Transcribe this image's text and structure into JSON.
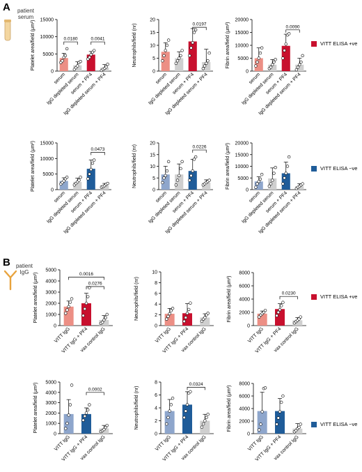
{
  "panels": {
    "A": {
      "letter": "A",
      "source_label": "patient serum",
      "legend_pos": "VITT ELISA +ve",
      "legend_neg": "VITT ELISA −ve"
    },
    "B": {
      "letter": "B",
      "source_label": "patient IgG",
      "legend_pos": "VITT ELISA +ve",
      "legend_neg": "VITT ELISA −ve"
    }
  },
  "colors": {
    "pos_dark": "#c8102e",
    "pos_light": "#ec8f85",
    "neg_dark": "#1f5c99",
    "neg_light": "#8ea6cc",
    "grey": "#cfcfcf",
    "serum_tube": "#f3d6a0",
    "igg_icon": "#e8a33d"
  },
  "chart_data": [
    {
      "id": "A-pos-platelet",
      "type": "bar",
      "ylabel": "Platelet area/field (μm²)",
      "ylim": [
        0,
        15000
      ],
      "yticks": [
        0,
        5000,
        10000,
        15000
      ],
      "categories": [
        "serum",
        "IgG depleted serum",
        "serum + PF4",
        "IgG depleted serum + PF4"
      ],
      "values": [
        3800,
        1700,
        4800,
        1000
      ],
      "errors": [
        1400,
        1000,
        900,
        900
      ],
      "points": [
        [
          2500,
          3000,
          4000,
          4500,
          6500
        ],
        [
          500,
          1000,
          1500,
          2500,
          2800
        ],
        [
          3500,
          4000,
          4800,
          5500,
          6000
        ],
        [
          200,
          500,
          800,
          1200,
          2000
        ]
      ],
      "colors": [
        "pos_light",
        "grey",
        "pos_dark",
        "grey"
      ],
      "brackets": [
        {
          "from": 0,
          "to": 1,
          "label": "0.0180",
          "y": 8500
        },
        {
          "from": 2,
          "to": 3,
          "label": "0.0041",
          "y": 8500
        }
      ]
    },
    {
      "id": "A-pos-neutrophil",
      "type": "bar",
      "ylabel": "Neutrophils/field (nr)",
      "ylim": [
        0,
        20
      ],
      "yticks": [
        0,
        5,
        10,
        15,
        20
      ],
      "categories": [
        "serum",
        "IgG depleted serum",
        "serum + PF4",
        "IgG depleted serum + PF4"
      ],
      "values": [
        7.5,
        5,
        11.5,
        3.5
      ],
      "errors": [
        3.5,
        2.5,
        5,
        5
      ],
      "points": [
        [
          4,
          6,
          8,
          10,
          12
        ],
        [
          3,
          4,
          5,
          6,
          8
        ],
        [
          6,
          9,
          11,
          15,
          16
        ],
        [
          1,
          2,
          3,
          4,
          7
        ]
      ],
      "colors": [
        "pos_light",
        "grey",
        "pos_dark",
        "grey"
      ],
      "brackets": [
        {
          "from": 2,
          "to": 3,
          "label": "0.0197",
          "y": 17
        }
      ]
    },
    {
      "id": "A-pos-fibrin",
      "type": "bar",
      "ylabel": "Fibrin area/field (μm²)",
      "ylim": [
        0,
        20000
      ],
      "yticks": [
        0,
        5000,
        10000,
        15000,
        20000
      ],
      "categories": [
        "serum",
        "IgG depleted serum",
        "serum + PF4",
        "IgG depleted serum + PF4"
      ],
      "values": [
        5000,
        2500,
        9800,
        2500
      ],
      "errors": [
        4000,
        2000,
        4500,
        2500
      ],
      "points": [
        [
          2000,
          3500,
          5000,
          7000,
          9000
        ],
        [
          1000,
          1500,
          2500,
          3500,
          4500
        ],
        [
          5000,
          8000,
          10500,
          14000,
          14500
        ],
        [
          500,
          1500,
          2500,
          3500,
          6000
        ]
      ],
      "colors": [
        "pos_light",
        "grey",
        "pos_dark",
        "grey"
      ],
      "brackets": [
        {
          "from": 2,
          "to": 3,
          "label": "0.0090",
          "y": 16000
        }
      ]
    },
    {
      "id": "A-neg-platelet",
      "type": "bar",
      "ylabel": "Platelet area/field (μm²)",
      "ylim": [
        0,
        15000
      ],
      "yticks": [
        0,
        5000,
        10000,
        15000
      ],
      "categories": [
        "serum",
        "IgG depleted serum",
        "serum + PF4",
        "IgG depleted serum + PF4"
      ],
      "values": [
        2800,
        2500,
        6700,
        1400
      ],
      "errors": [
        1000,
        1200,
        2800,
        600
      ],
      "points": [
        [
          1800,
          2300,
          2800,
          3500,
          4000
        ],
        [
          1500,
          2000,
          2500,
          3000,
          4000
        ],
        [
          3500,
          5000,
          6500,
          8500,
          9500
        ],
        [
          800,
          1000,
          1300,
          1700,
          2000
        ]
      ],
      "colors": [
        "neg_light",
        "grey",
        "neg_dark",
        "grey"
      ],
      "brackets": [
        {
          "from": 2,
          "to": 3,
          "label": "0.0473",
          "y": 12000
        }
      ]
    },
    {
      "id": "A-neg-neutrophil",
      "type": "bar",
      "ylabel": "Neutrophils/field (nr)",
      "ylim": [
        0,
        20
      ],
      "yticks": [
        0,
        5,
        10,
        15,
        20
      ],
      "categories": [
        "serum",
        "IgG depleted serum",
        "serum + PF4",
        "IgG depleted serum + PF4"
      ],
      "values": [
        6.5,
        6.5,
        8,
        3
      ],
      "errors": [
        3.5,
        4.5,
        5,
        1.2
      ],
      "points": [
        [
          3,
          5,
          6,
          8,
          12
        ],
        [
          2,
          4,
          6,
          9,
          12
        ],
        [
          4,
          6,
          8,
          13,
          14
        ],
        [
          2,
          2.5,
          3,
          3.5,
          4
        ]
      ],
      "colors": [
        "neg_light",
        "grey",
        "neg_dark",
        "grey"
      ],
      "brackets": [
        {
          "from": 2,
          "to": 3,
          "label": "0.0226",
          "y": 17
        }
      ]
    },
    {
      "id": "A-neg-fibrin",
      "type": "bar",
      "ylabel": "Fibrin area/field (μm²)",
      "ylim": [
        0,
        20000
      ],
      "yticks": [
        0,
        5000,
        10000,
        15000,
        20000
      ],
      "categories": [
        "serum",
        "IgG depleted serum",
        "serum + PF4",
        "IgG depleted serum + PF4"
      ],
      "values": [
        3500,
        4800,
        7000,
        1500
      ],
      "errors": [
        2000,
        4500,
        4800,
        1000
      ],
      "points": [
        [
          1000,
          2500,
          3500,
          4500,
          6500
        ],
        [
          1500,
          2500,
          4000,
          7000,
          9500
        ],
        [
          2500,
          5000,
          7000,
          10000,
          14000
        ],
        [
          500,
          1000,
          1500,
          2000,
          2500
        ]
      ],
      "colors": [
        "neg_light",
        "grey",
        "neg_dark",
        "grey"
      ],
      "brackets": []
    },
    {
      "id": "B-pos-platelet",
      "type": "bar",
      "ylabel": "Platelet area/field (μm²)",
      "ylim": [
        0,
        5000
      ],
      "yticks": [
        0,
        1000,
        2000,
        3000,
        4000,
        5000
      ],
      "categories": [
        "VITT IgG",
        "VITT IgG + PF4",
        "vax control IgG"
      ],
      "values": [
        1700,
        2000,
        500
      ],
      "errors": [
        500,
        900,
        400
      ],
      "points": [
        [
          1100,
          1400,
          1700,
          2100,
          2400
        ],
        [
          900,
          1500,
          2000,
          2600,
          3400
        ],
        [
          200,
          300,
          500,
          700,
          1000
        ]
      ],
      "colors": [
        "pos_light",
        "pos_dark",
        "grey"
      ],
      "brackets": [
        {
          "from": 0,
          "to": 2,
          "label": "0.0016",
          "y": 4350
        },
        {
          "from": 1,
          "to": 2,
          "label": "0.0276",
          "y": 3500
        }
      ]
    },
    {
      "id": "B-pos-neutrophil",
      "type": "bar",
      "ylabel": "Neutrophils/field (nr)",
      "ylim": [
        0,
        10
      ],
      "yticks": [
        0,
        2,
        4,
        6,
        8,
        10
      ],
      "categories": [
        "VITT IgG",
        "VITT IgG + PF4",
        "vax control IgG"
      ],
      "values": [
        2.2,
        2.3,
        1.5
      ],
      "errors": [
        1,
        1.8,
        0.7
      ],
      "points": [
        [
          1.2,
          1.7,
          2.2,
          2.8,
          3.2
        ],
        [
          0.8,
          1.5,
          2.3,
          3,
          4.2
        ],
        [
          0.8,
          1.2,
          1.5,
          2,
          2.3
        ]
      ],
      "colors": [
        "pos_light",
        "pos_dark",
        "grey"
      ],
      "brackets": []
    },
    {
      "id": "B-pos-fibrin",
      "type": "bar",
      "ylabel": "Fibrin area/field (μm²)",
      "ylim": [
        0,
        8000
      ],
      "yticks": [
        0,
        2000,
        4000,
        6000,
        8000
      ],
      "categories": [
        "VITT IgG",
        "VITT IgG + PF4",
        "vax control IgG"
      ],
      "values": [
        1800,
        2500,
        800
      ],
      "errors": [
        400,
        800,
        400
      ],
      "points": [
        [
          1300,
          1600,
          1800,
          2000,
          2300
        ],
        [
          1500,
          2000,
          2400,
          3000,
          3500
        ],
        [
          400,
          600,
          800,
          1000,
          1300
        ]
      ],
      "colors": [
        "pos_light",
        "pos_dark",
        "grey"
      ],
      "brackets": [
        {
          "from": 1,
          "to": 2,
          "label": "0.0230",
          "y": 4400
        }
      ]
    },
    {
      "id": "B-neg-platelet",
      "type": "bar",
      "ylabel": "Platelet area/field (μm²)",
      "ylim": [
        0,
        5000
      ],
      "yticks": [
        0,
        1000,
        2000,
        3000,
        4000,
        5000
      ],
      "categories": [
        "VITT IgG",
        "VITT IgG + PF4",
        "vax control IgG"
      ],
      "values": [
        1900,
        1900,
        500
      ],
      "errors": [
        1400,
        600,
        300
      ],
      "points": [
        [
          500,
          1000,
          1800,
          2800,
          4700
        ],
        [
          1300,
          1700,
          2000,
          2300,
          2800
        ],
        [
          200,
          300,
          400,
          600,
          800
        ]
      ],
      "colors": [
        "neg_light",
        "neg_dark",
        "grey"
      ],
      "brackets": [
        {
          "from": 1,
          "to": 2,
          "label": "0.0002",
          "y": 4000
        }
      ]
    },
    {
      "id": "B-neg-neutrophil",
      "type": "bar",
      "ylabel": "Neutrophils/field (nr)",
      "ylim": [
        0,
        8
      ],
      "yticks": [
        0,
        2,
        4,
        6,
        8
      ],
      "categories": [
        "VITT IgG",
        "VITT IgG + PF4",
        "vax control IgG"
      ],
      "values": [
        3.5,
        4.5,
        2
      ],
      "errors": [
        1.8,
        2,
        1
      ],
      "points": [
        [
          1.5,
          2.5,
          3.5,
          4.5,
          5.5
        ],
        [
          2.5,
          3.5,
          4.5,
          6.3,
          6.5
        ],
        [
          1,
          1.5,
          2,
          2.5,
          3
        ]
      ],
      "colors": [
        "neg_light",
        "neg_dark",
        "grey"
      ],
      "brackets": [
        {
          "from": 1,
          "to": 2,
          "label": "0.0324",
          "y": 7.2
        }
      ]
    },
    {
      "id": "B-neg-fibrin",
      "type": "bar",
      "ylabel": "Fibrin area/field (μm²)",
      "ylim": [
        0,
        8000
      ],
      "yticks": [
        0,
        2000,
        4000,
        6000,
        8000
      ],
      "categories": [
        "VITT IgG",
        "VITT IgG + PF4",
        "vax control IgG"
      ],
      "values": [
        3600,
        3600,
        800
      ],
      "errors": [
        3000,
        2000,
        800
      ],
      "points": [
        [
          600,
          1500,
          3500,
          7200,
          7300
        ],
        [
          1500,
          2500,
          3500,
          5000,
          6000
        ],
        [
          300,
          500,
          800,
          1000,
          1500
        ]
      ],
      "colors": [
        "neg_light",
        "neg_dark",
        "grey"
      ],
      "brackets": []
    }
  ]
}
